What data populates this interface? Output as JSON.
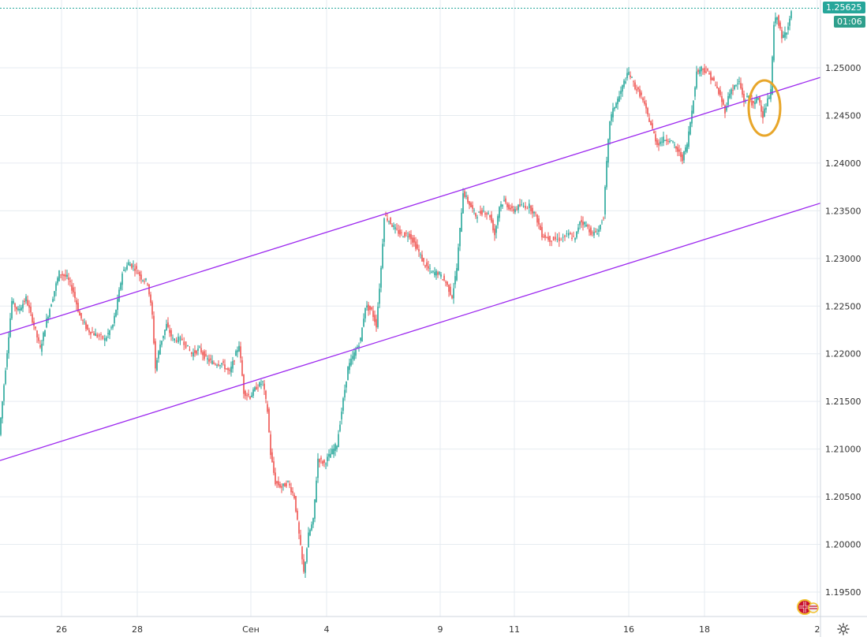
{
  "chart_data": {
    "type": "candlestick",
    "title": "",
    "xlabel": "",
    "ylabel": "",
    "x_ticks": [
      "26",
      "28",
      "Сен",
      "4",
      "9",
      "11",
      "16",
      "18",
      "2"
    ],
    "y_ticks": [
      "1.19500",
      "1.20000",
      "1.20500",
      "1.21000",
      "1.21500",
      "1.22000",
      "1.22500",
      "1.23000",
      "1.23500",
      "1.24000",
      "1.24500",
      "1.25000"
    ],
    "ylim": [
      1.1935,
      1.2576
    ],
    "series": [
      {
        "values": [
          [
            0,
            1.2115
          ],
          [
            8,
            1.2185
          ],
          [
            16,
            1.2255
          ],
          [
            24,
            1.2245
          ],
          [
            34,
            1.2258
          ],
          [
            44,
            1.223
          ],
          [
            52,
            1.2205
          ],
          [
            60,
            1.2235
          ],
          [
            68,
            1.226
          ],
          [
            76,
            1.2285
          ],
          [
            86,
            1.228
          ],
          [
            94,
            1.2265
          ],
          [
            102,
            1.224
          ],
          [
            112,
            1.2225
          ],
          [
            122,
            1.222
          ],
          [
            134,
            1.2215
          ],
          [
            144,
            1.223
          ],
          [
            150,
            1.2255
          ],
          [
            156,
            1.2285
          ],
          [
            164,
            1.2295
          ],
          [
            172,
            1.229
          ],
          [
            180,
            1.228
          ],
          [
            188,
            1.2275
          ],
          [
            194,
            1.224
          ],
          [
            198,
            1.2185
          ],
          [
            204,
            1.221
          ],
          [
            212,
            1.223
          ],
          [
            220,
            1.2215
          ],
          [
            232,
            1.2215
          ],
          [
            244,
            1.22
          ],
          [
            254,
            1.2205
          ],
          [
            262,
            1.2195
          ],
          [
            272,
            1.219
          ],
          [
            282,
            1.219
          ],
          [
            292,
            1.218
          ],
          [
            300,
            1.22
          ],
          [
            304,
            1.221
          ],
          [
            310,
            1.216
          ],
          [
            318,
            1.2155
          ],
          [
            326,
            1.2165
          ],
          [
            334,
            1.217
          ],
          [
            340,
            1.214
          ],
          [
            344,
            1.2095
          ],
          [
            350,
            1.2065
          ],
          [
            358,
            1.206
          ],
          [
            366,
            1.2065
          ],
          [
            374,
            1.205
          ],
          [
            380,
            1.201
          ],
          [
            386,
            1.197
          ],
          [
            392,
            1.201
          ],
          [
            398,
            1.2025
          ],
          [
            404,
            1.209
          ],
          [
            412,
            1.2085
          ],
          [
            420,
            1.2095
          ],
          [
            428,
            1.2105
          ],
          [
            434,
            1.214
          ],
          [
            442,
            1.2185
          ],
          [
            450,
            1.22
          ],
          [
            458,
            1.2215
          ],
          [
            464,
            1.225
          ],
          [
            472,
            1.2245
          ],
          [
            478,
            1.223
          ],
          [
            484,
            1.229
          ],
          [
            488,
            1.2345
          ],
          [
            494,
            1.234
          ],
          [
            502,
            1.233
          ],
          [
            510,
            1.2325
          ],
          [
            520,
            1.2325
          ],
          [
            530,
            1.231
          ],
          [
            538,
            1.2295
          ],
          [
            548,
            1.2285
          ],
          [
            556,
            1.2285
          ],
          [
            566,
            1.2275
          ],
          [
            574,
            1.226
          ],
          [
            580,
            1.229
          ],
          [
            584,
            1.233
          ],
          [
            588,
            1.237
          ],
          [
            594,
            1.236
          ],
          [
            604,
            1.2345
          ],
          [
            614,
            1.235
          ],
          [
            622,
            1.2345
          ],
          [
            628,
            1.2325
          ],
          [
            634,
            1.2355
          ],
          [
            640,
            1.236
          ],
          [
            650,
            1.235
          ],
          [
            660,
            1.2355
          ],
          [
            672,
            1.2355
          ],
          [
            680,
            1.2345
          ],
          [
            688,
            1.2325
          ],
          [
            698,
            1.232
          ],
          [
            710,
            1.232
          ],
          [
            722,
            1.2325
          ],
          [
            730,
            1.232
          ],
          [
            736,
            1.234
          ],
          [
            744,
            1.2335
          ],
          [
            752,
            1.2325
          ],
          [
            760,
            1.233
          ],
          [
            766,
            1.2345
          ],
          [
            770,
            1.24
          ],
          [
            774,
            1.2445
          ],
          [
            780,
            1.246
          ],
          [
            786,
            1.247
          ],
          [
            792,
            1.2485
          ],
          [
            798,
            1.2495
          ],
          [
            806,
            1.248
          ],
          [
            814,
            1.247
          ],
          [
            822,
            1.245
          ],
          [
            828,
            1.2435
          ],
          [
            834,
            1.242
          ],
          [
            842,
            1.2425
          ],
          [
            850,
            1.2425
          ],
          [
            858,
            1.2415
          ],
          [
            866,
            1.2405
          ],
          [
            872,
            1.242
          ],
          [
            878,
            1.2455
          ],
          [
            884,
            1.2495
          ],
          [
            890,
            1.25
          ],
          [
            898,
            1.2495
          ],
          [
            906,
            1.2485
          ],
          [
            914,
            1.247
          ],
          [
            920,
            1.2455
          ],
          [
            926,
            1.2475
          ],
          [
            932,
            1.248
          ],
          [
            938,
            1.2485
          ],
          [
            944,
            1.2465
          ],
          [
            950,
            1.247
          ],
          [
            956,
            1.246
          ],
          [
            962,
            1.247
          ],
          [
            968,
            1.245
          ],
          [
            974,
            1.2465
          ],
          [
            978,
            1.2475
          ],
          [
            982,
            1.2545
          ],
          [
            986,
            1.2555
          ],
          [
            992,
            1.253
          ],
          [
            998,
            1.254
          ],
          [
            1004,
            1.2557
          ]
        ]
      }
    ],
    "channel_lines": [
      {
        "from": {
          "date": "start",
          "price": 1.222
        },
        "to": {
          "date": "end",
          "price": 1.249
        }
      },
      {
        "from": {
          "date": "start",
          "price": 1.2088
        },
        "to": {
          "date": "end",
          "price": 1.2358
        }
      }
    ],
    "highlight": {
      "shape": "ellipse",
      "color": "#e8a62a",
      "label": ""
    },
    "last_price": "1.25625",
    "countdown": "01:06",
    "colors": {
      "up": "#26a69a",
      "down": "#ef5350",
      "channel": "#9c27ef",
      "grid": "#e6ebf0",
      "badge": "#26a69a"
    }
  },
  "ui": {
    "settings_icon": "gear-icon",
    "flag_icon": "uk-us-flag-icon"
  }
}
